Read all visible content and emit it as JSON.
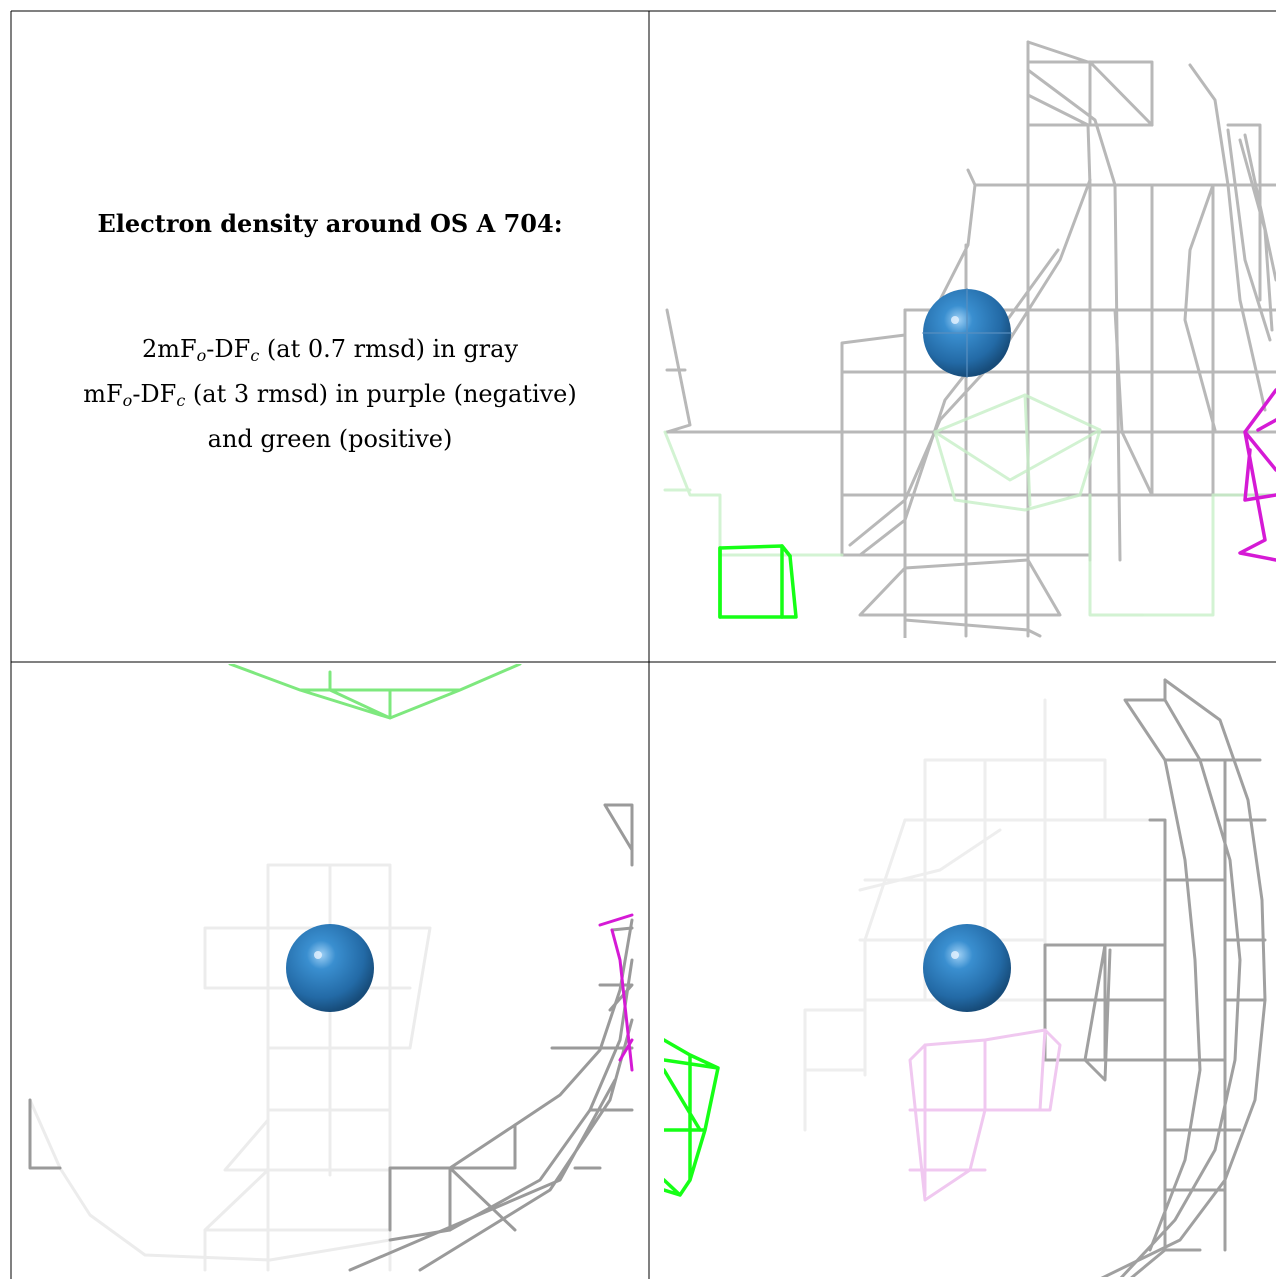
{
  "caption": {
    "title": "Electron density around OS A 704:",
    "line1_pre": "2mF",
    "line1_sub1": "o",
    "line1_mid": "-DF",
    "line1_sub2": "c",
    "line1_post": " (at 0.7 rmsd) in gray",
    "line2_pre": "mF",
    "line2_sub1": "o",
    "line2_mid": "-DF",
    "line2_sub2": "c",
    "line2_post": " (at 3 rmsd) in purple (negative)",
    "line3": "and green (positive)"
  },
  "colors": {
    "atom": "#2e7bb8",
    "grey_mesh": "#a9a9a9",
    "green_mesh": "#16ff16",
    "purple_mesh": "#d51ad5"
  },
  "panels": [
    {
      "name": "view-1",
      "atom": "OS A 704"
    },
    {
      "name": "view-2",
      "atom": "OS A 704"
    },
    {
      "name": "view-3",
      "atom": "OS A 704"
    }
  ]
}
